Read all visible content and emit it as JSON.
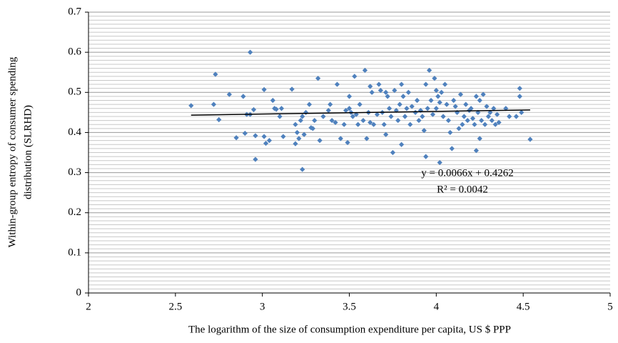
{
  "chart_data": {
    "type": "scatter",
    "xlabel": "The logarithm of the size of consumption expenditure per capita, US $ PPP",
    "ylabel": [
      "Within-group entropy of consumer spending",
      "distribution (SLRHD)"
    ],
    "xlim": [
      2,
      5
    ],
    "xticks": [
      2,
      2.5,
      3,
      3.5,
      4,
      4.5,
      5
    ],
    "ylim": [
      0,
      0.7
    ],
    "yticks": [
      0,
      0.1,
      0.2,
      0.3,
      0.4,
      0.5,
      0.6,
      0.7
    ],
    "yminorticks": [
      0.01,
      0.02,
      0.03,
      0.04,
      0.05,
      0.06,
      0.07,
      0.08,
      0.09,
      0.11,
      0.12,
      0.13,
      0.14,
      0.15,
      0.16,
      0.17,
      0.18,
      0.19,
      0.21,
      0.22,
      0.23,
      0.24,
      0.25,
      0.26,
      0.27,
      0.28,
      0.29,
      0.31,
      0.32,
      0.33,
      0.34,
      0.35,
      0.36,
      0.37,
      0.38,
      0.39,
      0.41,
      0.42,
      0.43,
      0.44,
      0.45,
      0.46,
      0.47,
      0.48,
      0.49,
      0.51,
      0.52,
      0.53,
      0.54,
      0.55,
      0.56,
      0.57,
      0.58,
      0.59,
      0.61,
      0.62,
      0.63,
      0.64,
      0.65,
      0.66,
      0.67,
      0.68,
      0.69
    ],
    "grid": true,
    "series": [
      {
        "color": "#4f81bd",
        "x": [
          2.59,
          2.72,
          2.73,
          2.75,
          2.81,
          2.85,
          2.89,
          2.9,
          2.91,
          2.93,
          2.93,
          2.95,
          2.96,
          2.96,
          3.01,
          3.01,
          3.02,
          3.04,
          3.06,
          3.07,
          3.08,
          3.1,
          3.11,
          3.12,
          3.17,
          3.19,
          3.19,
          3.2,
          3.21,
          3.22,
          3.23,
          3.23,
          3.24,
          3.25,
          3.27,
          3.28,
          3.29,
          3.3,
          3.32,
          3.33,
          3.35,
          3.38,
          3.39,
          3.4,
          3.42,
          3.43,
          3.45,
          3.47,
          3.48,
          3.49,
          3.5,
          3.5,
          3.51,
          3.52,
          3.53,
          3.54,
          3.55,
          3.56,
          3.58,
          3.59,
          3.6,
          3.61,
          3.62,
          3.62,
          3.63,
          3.64,
          3.66,
          3.67,
          3.68,
          3.69,
          3.7,
          3.71,
          3.71,
          3.72,
          3.73,
          3.74,
          3.75,
          3.76,
          3.77,
          3.78,
          3.79,
          3.8,
          3.8,
          3.81,
          3.82,
          3.83,
          3.84,
          3.85,
          3.86,
          3.88,
          3.89,
          3.9,
          3.91,
          3.92,
          3.93,
          3.94,
          3.94,
          3.95,
          3.96,
          3.97,
          3.98,
          3.99,
          4.0,
          4.0,
          4.01,
          4.02,
          4.02,
          4.03,
          4.04,
          4.05,
          4.06,
          4.07,
          4.08,
          4.09,
          4.1,
          4.11,
          4.12,
          4.13,
          4.14,
          4.15,
          4.16,
          4.17,
          4.18,
          4.19,
          4.2,
          4.21,
          4.22,
          4.23,
          4.23,
          4.24,
          4.25,
          4.25,
          4.26,
          4.27,
          4.28,
          4.29,
          4.3,
          4.31,
          4.32,
          4.33,
          4.34,
          4.35,
          4.36,
          4.4,
          4.42,
          4.46,
          4.48,
          4.48,
          4.49,
          4.54
        ],
        "y": [
          0.467,
          0.47,
          0.545,
          0.432,
          0.495,
          0.387,
          0.49,
          0.398,
          0.445,
          0.6,
          0.445,
          0.457,
          0.392,
          0.333,
          0.507,
          0.39,
          0.373,
          0.38,
          0.48,
          0.46,
          0.458,
          0.44,
          0.46,
          0.39,
          0.508,
          0.42,
          0.372,
          0.4,
          0.385,
          0.43,
          0.308,
          0.44,
          0.395,
          0.45,
          0.47,
          0.412,
          0.41,
          0.43,
          0.535,
          0.38,
          0.44,
          0.455,
          0.47,
          0.43,
          0.425,
          0.52,
          0.385,
          0.42,
          0.455,
          0.375,
          0.49,
          0.46,
          0.45,
          0.44,
          0.54,
          0.445,
          0.42,
          0.47,
          0.43,
          0.555,
          0.385,
          0.45,
          0.515,
          0.425,
          0.5,
          0.42,
          0.445,
          0.52,
          0.505,
          0.45,
          0.42,
          0.5,
          0.395,
          0.49,
          0.46,
          0.44,
          0.35,
          0.505,
          0.455,
          0.43,
          0.47,
          0.52,
          0.37,
          0.49,
          0.44,
          0.46,
          0.5,
          0.42,
          0.465,
          0.45,
          0.48,
          0.43,
          0.455,
          0.44,
          0.405,
          0.34,
          0.52,
          0.46,
          0.555,
          0.48,
          0.445,
          0.535,
          0.505,
          0.46,
          0.49,
          0.475,
          0.325,
          0.5,
          0.44,
          0.52,
          0.47,
          0.43,
          0.4,
          0.36,
          0.48,
          0.465,
          0.45,
          0.41,
          0.495,
          0.42,
          0.44,
          0.47,
          0.43,
          0.455,
          0.46,
          0.435,
          0.42,
          0.355,
          0.49,
          0.45,
          0.385,
          0.48,
          0.43,
          0.495,
          0.42,
          0.465,
          0.44,
          0.45,
          0.43,
          0.46,
          0.42,
          0.445,
          0.425,
          0.46,
          0.44,
          0.44,
          0.51,
          0.49,
          0.45,
          0.383
        ]
      }
    ],
    "trendline": {
      "label": "y = 0.0066x + 0.4262",
      "r2_label": "R² = 0.0042",
      "slope": 0.0066,
      "intercept": 0.4262,
      "x": [
        2.59,
        4.54
      ],
      "color": "#000000"
    }
  }
}
